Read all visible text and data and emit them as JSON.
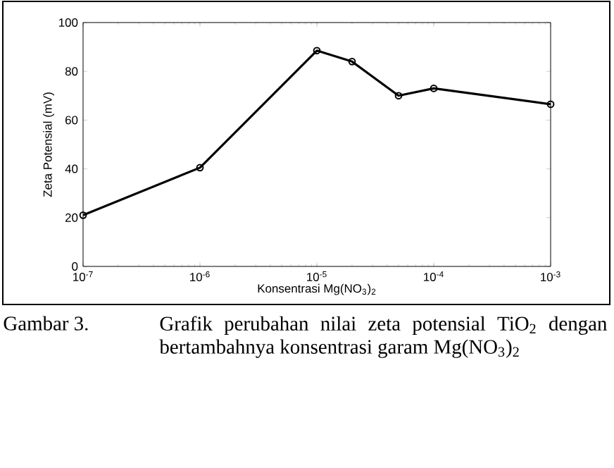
{
  "chart_data": {
    "type": "line",
    "xlabel": "Konsentrasi Mg(NO$_{3}$)$_{2}$",
    "ylabel": "Zeta Potensial (mV)",
    "x": [
      1e-07,
      1e-06,
      1e-05,
      2e-05,
      5e-05,
      0.0001,
      0.001
    ],
    "series": [
      {
        "color": "#000000",
        "values": [
          21,
          40.5,
          88.5,
          84,
          70,
          73,
          66.5
        ]
      }
    ],
    "log": "x",
    "marker": "circle",
    "line_style": "solid",
    "xlim": [
      1e-07,
      0.001
    ],
    "ylim": [
      0,
      100
    ],
    "xticks": [
      {
        "value": 1e-07,
        "label": "10$^{-7}$"
      },
      {
        "value": 1e-06,
        "label": "10$^{-6}$"
      },
      {
        "value": 1e-05,
        "label": "10$^{-5}$"
      },
      {
        "value": 0.0001,
        "label": "10$^{-4}$"
      },
      {
        "value": 0.001,
        "label": "10$^{-3}$"
      }
    ],
    "yticks": [
      0,
      20,
      40,
      60,
      80,
      100
    ],
    "annotations": [
      "Gambar 3.",
      "Grafik perubahan nilai zeta potensial TiO$_{2}$ dengan bertambahnya konsentrasi garam Mg(NO$_{3}$)$_{2}$"
    ]
  }
}
